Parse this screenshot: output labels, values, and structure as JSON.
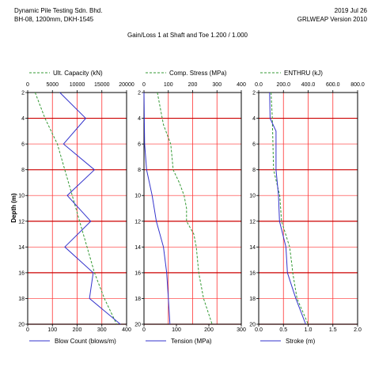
{
  "header": {
    "company": "Dynamic Pile Testing Sdn. Bhd.",
    "pile_info": "BH-08, 1200mm, DKH-1545",
    "date": "2019 Jul 26",
    "software": "GRLWEAP Version 2010",
    "subtitle": "Gain/Loss 1 at Shaft and Toe 1.200 / 1.000"
  },
  "colors": {
    "grid": "#ff3333",
    "grid_major": "#cc0000",
    "solid_line": "#3333cc",
    "dashed_line": "#339933",
    "axis": "#000000"
  },
  "chart_data": [
    {
      "type": "line",
      "ylabel": "Depth (m)",
      "ylim": [
        20,
        2
      ],
      "y_ticks": [
        "2",
        "4",
        "6",
        "8",
        "10",
        "12",
        "14",
        "16",
        "18",
        "20"
      ],
      "top_axis": {
        "label": "Ult. Capacity (kN)",
        "range": [
          0,
          20000
        ],
        "ticks": [
          "0",
          "5000",
          "10000",
          "15000",
          "20000"
        ],
        "series": {
          "name": "Ult. Capacity (kN)",
          "style": "dashed",
          "points": [
            [
              2,
              1500
            ],
            [
              4,
              3500
            ],
            [
              6,
              6000
            ],
            [
              8,
              7500
            ],
            [
              10,
              9000
            ],
            [
              12,
              10500
            ],
            [
              14,
              12000
            ],
            [
              16,
              13500
            ],
            [
              18,
              15500
            ],
            [
              20,
              18000
            ]
          ]
        }
      },
      "bottom_axis": {
        "label": "Blow Count (blows/m)",
        "range": [
          0,
          400
        ],
        "ticks": [
          "0",
          "100",
          "200",
          "300",
          "400"
        ],
        "series": {
          "name": "Blow Count (blows/m)",
          "style": "solid",
          "points": [
            [
              2,
              130
            ],
            [
              4,
              235
            ],
            [
              6,
              145
            ],
            [
              8,
              270
            ],
            [
              10,
              160
            ],
            [
              12,
              255
            ],
            [
              14,
              150
            ],
            [
              16,
              265
            ],
            [
              18,
              250
            ],
            [
              20,
              375
            ]
          ]
        }
      }
    },
    {
      "type": "line",
      "ylim": [
        20,
        2
      ],
      "top_axis": {
        "label": "Comp. Stress (MPa)",
        "range": [
          0,
          400
        ],
        "ticks": [
          "0",
          "100",
          "200",
          "300",
          "400"
        ],
        "series": {
          "name": "Comp. Stress (MPa)",
          "style": "dashed",
          "points": [
            [
              2,
              55
            ],
            [
              3.5,
              70
            ],
            [
              4.5,
              80
            ],
            [
              6,
              110
            ],
            [
              7,
              115
            ],
            [
              8,
              120
            ],
            [
              9,
              145
            ],
            [
              10,
              165
            ],
            [
              11,
              175
            ],
            [
              12,
              175
            ],
            [
              13,
              205
            ],
            [
              14,
              215
            ],
            [
              16,
              225
            ],
            [
              18,
              245
            ],
            [
              20,
              280
            ]
          ]
        }
      },
      "bottom_axis": {
        "label": "Tension (MPa)",
        "range": [
          0,
          300
        ],
        "ticks": [
          "0",
          "100",
          "200",
          "300"
        ],
        "series": {
          "name": "Tension (MPa)",
          "style": "solid",
          "points": [
            [
              2,
              0
            ],
            [
              6,
              2
            ],
            [
              8,
              8
            ],
            [
              10,
              25
            ],
            [
              12,
              38
            ],
            [
              14,
              60
            ],
            [
              16,
              70
            ],
            [
              18,
              75
            ],
            [
              20,
              80
            ]
          ]
        }
      }
    },
    {
      "type": "line",
      "ylim": [
        20,
        2
      ],
      "top_axis": {
        "label": "ENTHRU (kJ)",
        "range": [
          0,
          800
        ],
        "ticks": [
          "0.0",
          "200.0",
          "400.0",
          "600.0",
          "800.0"
        ],
        "series": {
          "name": "ENTHRU (kJ)",
          "style": "dashed",
          "points": [
            [
              2,
              100
            ],
            [
              4,
              110
            ],
            [
              6,
              115
            ],
            [
              8,
              120
            ],
            [
              10,
              170
            ],
            [
              12,
              185
            ],
            [
              14,
              250
            ],
            [
              15.5,
              270
            ],
            [
              16,
              275
            ],
            [
              18,
              310
            ],
            [
              20,
              400
            ]
          ]
        }
      },
      "bottom_axis": {
        "label": "Stroke (m)",
        "range": [
          0,
          2
        ],
        "ticks": [
          "0.0",
          "0.5",
          "1.0",
          "1.5",
          "2.0"
        ],
        "series": {
          "name": "Stroke (m)",
          "style": "solid",
          "points": [
            [
              2,
              0.22
            ],
            [
              4,
              0.23
            ],
            [
              5,
              0.35
            ],
            [
              8,
              0.35
            ],
            [
              10,
              0.4
            ],
            [
              12,
              0.42
            ],
            [
              14,
              0.55
            ],
            [
              16,
              0.58
            ],
            [
              18,
              0.75
            ],
            [
              20,
              0.95
            ]
          ]
        }
      }
    }
  ]
}
